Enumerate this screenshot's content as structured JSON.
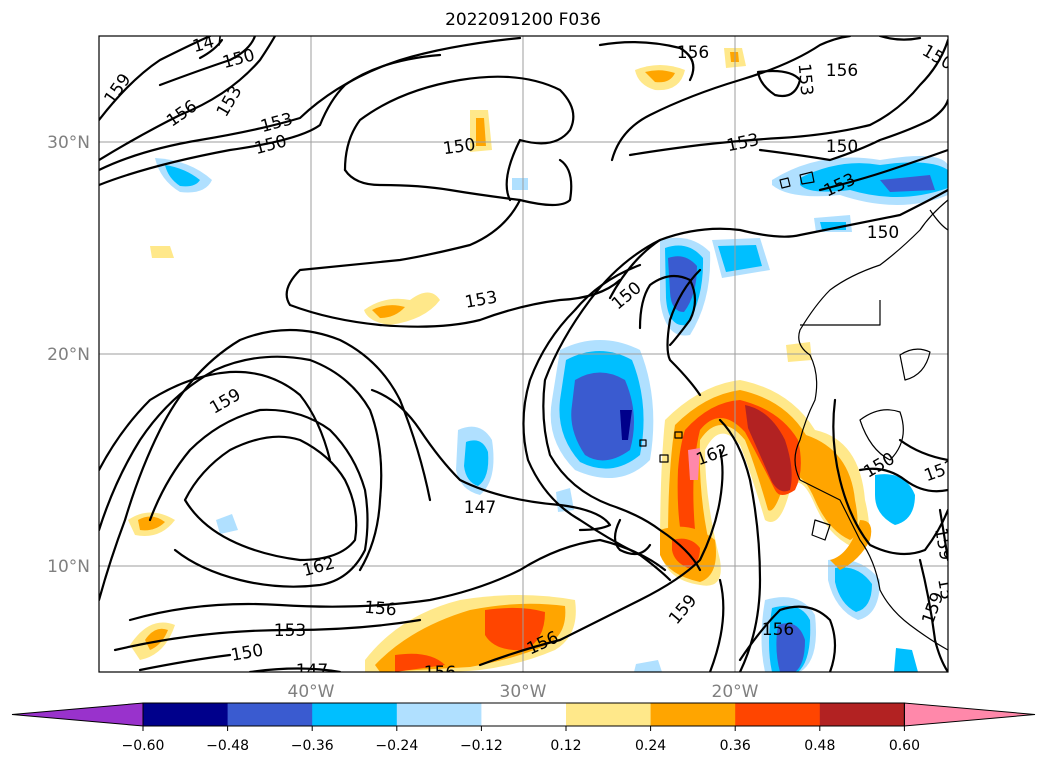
{
  "title": "2022091200 F036",
  "lat_labels": [
    "30°N",
    "20°N",
    "10°N"
  ],
  "lon_labels": [
    "40°W",
    "30°W",
    "20°W"
  ],
  "colorbar": {
    "ticks": [
      "−0.60",
      "−0.48",
      "−0.36",
      "−0.24",
      "−0.12",
      "0.12",
      "0.24",
      "0.36",
      "0.48",
      "0.60"
    ],
    "colors": [
      "#9932cc",
      "#00008b",
      "#3a5bd0",
      "#00bfff",
      "#b0e0ff",
      "#ffffff",
      "#ffe88a",
      "#ffa500",
      "#ff4500",
      "#b22222",
      "#ff88aa"
    ],
    "extend": "both"
  },
  "contour_labels": [
    "147",
    "150",
    "159",
    "156",
    "153",
    "153",
    "150",
    "150",
    "156",
    "153",
    "156",
    "150",
    "153",
    "150",
    "153",
    "150",
    "150",
    "153",
    "159",
    "162",
    "147",
    "162",
    "150",
    "153",
    "159",
    "156",
    "156",
    "153",
    "150",
    "147",
    "156",
    "159",
    "156",
    "15",
    "159"
  ],
  "map": {
    "extent_lon": [
      -50,
      -10
    ],
    "extent_lat": [
      5,
      35
    ],
    "projection": "PlateCarree",
    "gridlines": true,
    "field": "contours (dam) with shaded anomaly"
  }
}
